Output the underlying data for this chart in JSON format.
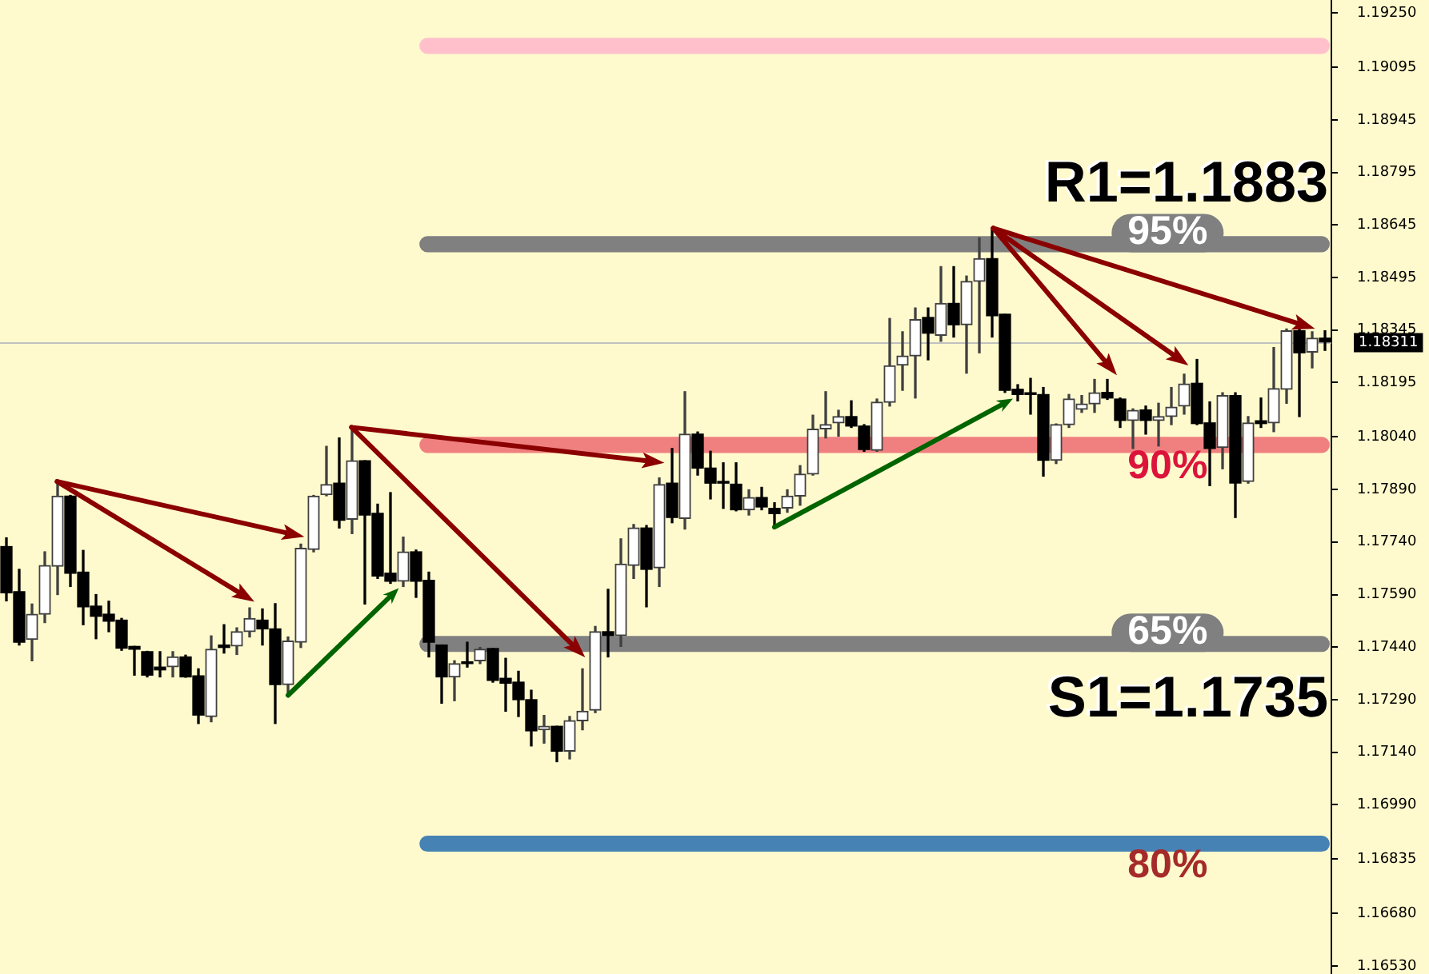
{
  "chart_data": {
    "type": "candlestick",
    "categories": [
      null,
      null,
      null,
      null,
      null,
      null,
      null,
      null,
      null,
      null,
      null,
      null,
      null,
      null,
      null,
      null,
      null,
      null,
      null,
      null,
      null,
      null,
      null,
      null,
      null,
      null,
      null,
      null,
      null,
      null,
      null,
      null,
      null,
      null,
      null,
      null,
      null,
      null,
      null,
      null,
      null,
      null,
      null,
      null,
      null,
      null,
      null,
      null,
      null,
      null,
      null,
      null,
      null,
      null,
      null,
      null,
      null,
      null,
      null,
      null,
      null,
      null,
      null,
      null,
      null,
      null,
      null,
      null,
      null,
      null,
      null,
      null,
      null,
      null,
      null,
      null,
      null,
      null,
      null,
      null,
      null,
      null,
      null,
      null,
      null,
      null,
      null,
      null,
      null,
      null,
      null,
      null,
      null,
      null,
      null,
      null,
      null,
      null,
      null,
      null,
      null,
      null,
      null,
      null
    ],
    "ohlc": [
      [
        1.17727,
        1.17752,
        1.17572,
        1.17595
      ],
      [
        1.17598,
        1.17662,
        1.17446,
        1.17454
      ],
      [
        1.17462,
        1.17563,
        1.17401,
        1.17534
      ],
      [
        1.17534,
        1.17712,
        1.1751,
        1.17673
      ],
      [
        1.17671,
        1.17912,
        1.1759,
        1.17871
      ],
      [
        1.17871,
        1.17873,
        1.17613,
        1.17651
      ],
      [
        1.17654,
        1.17716,
        1.17504,
        1.17555
      ],
      [
        1.17557,
        1.1759,
        1.17464,
        1.17528
      ],
      [
        1.17534,
        1.17571,
        1.17484,
        1.17514
      ],
      [
        1.17517,
        1.17522,
        1.17431,
        1.17437
      ],
      [
        1.17442,
        1.17442,
        1.1736,
        1.17434
      ],
      [
        1.17427,
        1.17428,
        1.17355,
        1.1736
      ],
      [
        1.17383,
        1.17427,
        1.17355,
        1.17375
      ],
      [
        1.17384,
        1.17427,
        1.17355,
        1.17412
      ],
      [
        1.17412,
        1.17417,
        1.17354,
        1.17355
      ],
      [
        1.17358,
        1.17378,
        1.17222,
        1.17246
      ],
      [
        1.17242,
        1.17472,
        1.17227,
        1.17434
      ],
      [
        1.17446,
        1.17504,
        1.17423,
        1.17439
      ],
      [
        1.17443,
        1.17495,
        1.17419,
        1.17484
      ],
      [
        1.17484,
        1.17552,
        1.17469,
        1.17522
      ],
      [
        1.17517,
        1.17549,
        1.17446,
        1.17492
      ],
      [
        1.17492,
        1.17564,
        1.17222,
        1.17333
      ],
      [
        1.17333,
        1.17469,
        1.17303,
        1.17457
      ],
      [
        1.17454,
        1.17734,
        1.17439,
        1.17722
      ],
      [
        1.17719,
        1.17873,
        1.17712,
        1.17871
      ],
      [
        1.17875,
        1.18013,
        1.17872,
        1.17904
      ],
      [
        1.17908,
        1.18037,
        1.1778,
        1.17802
      ],
      [
        1.17805,
        1.18067,
        1.17764,
        1.17972
      ],
      [
        1.17972,
        1.17972,
        1.17563,
        1.17817
      ],
      [
        1.17822,
        1.17848,
        1.17636,
        1.17643
      ],
      [
        1.17651,
        1.17881,
        1.17622,
        1.17628
      ],
      [
        1.17628,
        1.17754,
        1.17613,
        1.17712
      ],
      [
        1.17712,
        1.17717,
        1.17582,
        1.17628
      ],
      [
        1.17631,
        1.17654,
        1.17412,
        1.17454
      ],
      [
        1.17446,
        1.17446,
        1.1728,
        1.17355
      ],
      [
        1.17355,
        1.17401,
        1.17287,
        1.17393
      ],
      [
        1.17398,
        1.17454,
        1.17383,
        1.17393
      ],
      [
        1.17401,
        1.17439,
        1.17393,
        1.17434
      ],
      [
        1.17436,
        1.17436,
        1.1734,
        1.17345
      ],
      [
        1.17351,
        1.17408,
        1.17257,
        1.17337
      ],
      [
        1.1734,
        1.17371,
        1.17242,
        1.1729
      ],
      [
        1.1729,
        1.17317,
        1.17158,
        1.17201
      ],
      [
        1.17204,
        1.17245,
        1.17166,
        1.17214
      ],
      [
        1.17214,
        1.17214,
        1.17113,
        1.17143
      ],
      [
        1.17143,
        1.17242,
        1.17121,
        1.1723
      ],
      [
        1.1723,
        1.17378,
        1.17204,
        1.17257
      ],
      [
        1.1726,
        1.17499,
        1.17253,
        1.17484
      ],
      [
        1.17484,
        1.17605,
        1.17412,
        1.17473
      ],
      [
        1.17473,
        1.17749,
        1.17442,
        1.17677
      ],
      [
        1.17673,
        1.1779,
        1.17636,
        1.1778
      ],
      [
        1.1778,
        1.17787,
        1.17555,
        1.17662
      ],
      [
        1.17666,
        1.17923,
        1.17613,
        1.17904
      ],
      [
        1.17908,
        1.18007,
        1.17795,
        1.1781
      ],
      [
        1.17807,
        1.18169,
        1.17777,
        1.18048
      ],
      [
        1.18048,
        1.18054,
        1.17931,
        1.17951
      ],
      [
        1.17951,
        1.17999,
        1.17863,
        1.17908
      ],
      [
        1.17913,
        1.17966,
        1.17836,
        1.17908
      ],
      [
        1.17905,
        1.17966,
        1.17829,
        1.17832
      ],
      [
        1.17832,
        1.17889,
        1.17817,
        1.17867
      ],
      [
        1.17867,
        1.17896,
        1.17832,
        1.1784
      ],
      [
        1.17836,
        1.17852,
        1.17782,
        1.17821
      ],
      [
        1.17837,
        1.17889,
        1.17825,
        1.17871
      ],
      [
        1.17871,
        1.17958,
        1.17845,
        1.17934
      ],
      [
        1.17934,
        1.18102,
        1.17931,
        1.18062
      ],
      [
        1.18063,
        1.18169,
        1.18037,
        1.18075
      ],
      [
        1.1808,
        1.18116,
        1.18042,
        1.18098
      ],
      [
        1.18098,
        1.18143,
        1.18067,
        1.18071
      ],
      [
        1.18071,
        1.18075,
        1.17999,
        1.18004
      ],
      [
        1.18002,
        1.18148,
        1.17999,
        1.18139
      ],
      [
        1.18139,
        1.18378,
        1.18128,
        1.18243
      ],
      [
        1.18245,
        1.1834,
        1.18173,
        1.18271
      ],
      [
        1.18271,
        1.18408,
        1.18151,
        1.18375
      ],
      [
        1.18381,
        1.18408,
        1.1826,
        1.18336
      ],
      [
        1.1833,
        1.18526,
        1.18313,
        1.18421
      ],
      [
        1.18421,
        1.18526,
        1.18325,
        1.1836
      ],
      [
        1.1836,
        1.18499,
        1.18222,
        1.18484
      ],
      [
        1.18484,
        1.18608,
        1.1828,
        1.18549
      ],
      [
        1.18549,
        1.18636,
        1.18325,
        1.18386
      ],
      [
        1.1839,
        1.1839,
        1.18167,
        1.18173
      ],
      [
        1.18176,
        1.18189,
        1.18143,
        1.18161
      ],
      [
        1.18166,
        1.18207,
        1.18105,
        1.18161
      ],
      [
        1.18161,
        1.18181,
        1.17928,
        1.17973
      ],
      [
        1.17973,
        1.18077,
        1.17964,
        1.18075
      ],
      [
        1.18075,
        1.18161,
        1.18067,
        1.18148
      ],
      [
        1.18119,
        1.18158,
        1.1811,
        1.18134
      ],
      [
        1.18134,
        1.18204,
        1.1811,
        1.18166
      ],
      [
        1.18167,
        1.18204,
        1.18147,
        1.18151
      ],
      [
        1.18148,
        1.18151,
        1.18067,
        1.18087
      ],
      [
        1.18087,
        1.1812,
        1.18007,
        1.18116
      ],
      [
        1.18117,
        1.18128,
        1.18048,
        1.18087
      ],
      [
        1.18087,
        1.18136,
        1.18014,
        1.18098
      ],
      [
        1.18098,
        1.18181,
        1.18075,
        1.18125
      ],
      [
        1.18128,
        1.18219,
        1.18105,
        1.18191
      ],
      [
        1.18193,
        1.18261,
        1.18075,
        1.18078
      ],
      [
        1.1808,
        1.1814,
        1.17901,
        1.18007
      ],
      [
        1.1801,
        1.18166,
        1.17949,
        1.18158
      ],
      [
        1.18158,
        1.18166,
        1.1781,
        1.17908
      ],
      [
        1.17913,
        1.18098,
        1.17908,
        1.1808
      ],
      [
        1.18086,
        1.18151,
        1.18067,
        1.18078
      ],
      [
        1.1808,
        1.18295,
        1.18055,
        1.18178
      ],
      [
        1.18176,
        1.18348,
        1.18136,
        1.18343
      ],
      [
        1.18343,
        1.18355,
        1.18098,
        1.1828
      ],
      [
        1.18282,
        1.1834,
        1.18237,
        1.18322
      ],
      [
        1.18322,
        1.18343,
        1.18287,
        1.18311
      ]
    ],
    "ylim": [
      1.16507,
      1.19287
    ],
    "yticks": [
      {
        "value": 1.1925,
        "label": "1.19250"
      },
      1.19095,
      1.18945,
      1.18795,
      1.18645,
      1.18495,
      1.18345,
      1.18195,
      {
        "value": 1.1804,
        "label": "1.18040"
      },
      {
        "value": 1.1789,
        "label": "1.17890"
      },
      {
        "value": 1.1774,
        "label": "1.17740"
      },
      {
        "value": 1.1759,
        "label": "1.17590"
      },
      {
        "value": 1.1744,
        "label": "1.17440"
      },
      {
        "value": 1.1729,
        "label": "1.17290"
      },
      {
        "value": 1.1714,
        "label": "1.17140"
      },
      {
        "value": 1.1699,
        "label": "1.16990"
      },
      1.16835,
      {
        "value": 1.1668,
        "label": "1.16680"
      },
      {
        "value": 1.1653,
        "label": "1.16530"
      }
    ],
    "tick_labels": "y",
    "bands": [
      {
        "axis": "y",
        "from": 1.19133,
        "to": 1.19179,
        "color": "#ffc0cb"
      },
      {
        "axis": "y",
        "from": 1.18567,
        "to": 1.18613,
        "label": "95%",
        "color": "#808080"
      },
      {
        "axis": "y",
        "from": 1.17994,
        "to": 1.1804,
        "label": "90%",
        "color": "#f08080"
      },
      {
        "axis": "y",
        "from": 1.17426,
        "to": 1.17472,
        "label": "65%",
        "color": "#808080"
      },
      {
        "axis": "y",
        "from": 1.16856,
        "to": 1.16902,
        "label": "80%",
        "color": "#4682b4"
      }
    ],
    "ref_lines": [
      {
        "axis": "y",
        "value": 1.18311,
        "label": "1.18311",
        "color": "#c0c0c0"
      }
    ],
    "annotations": [
      "R1=1.1883",
      "S1=1.1735"
    ]
  }
}
